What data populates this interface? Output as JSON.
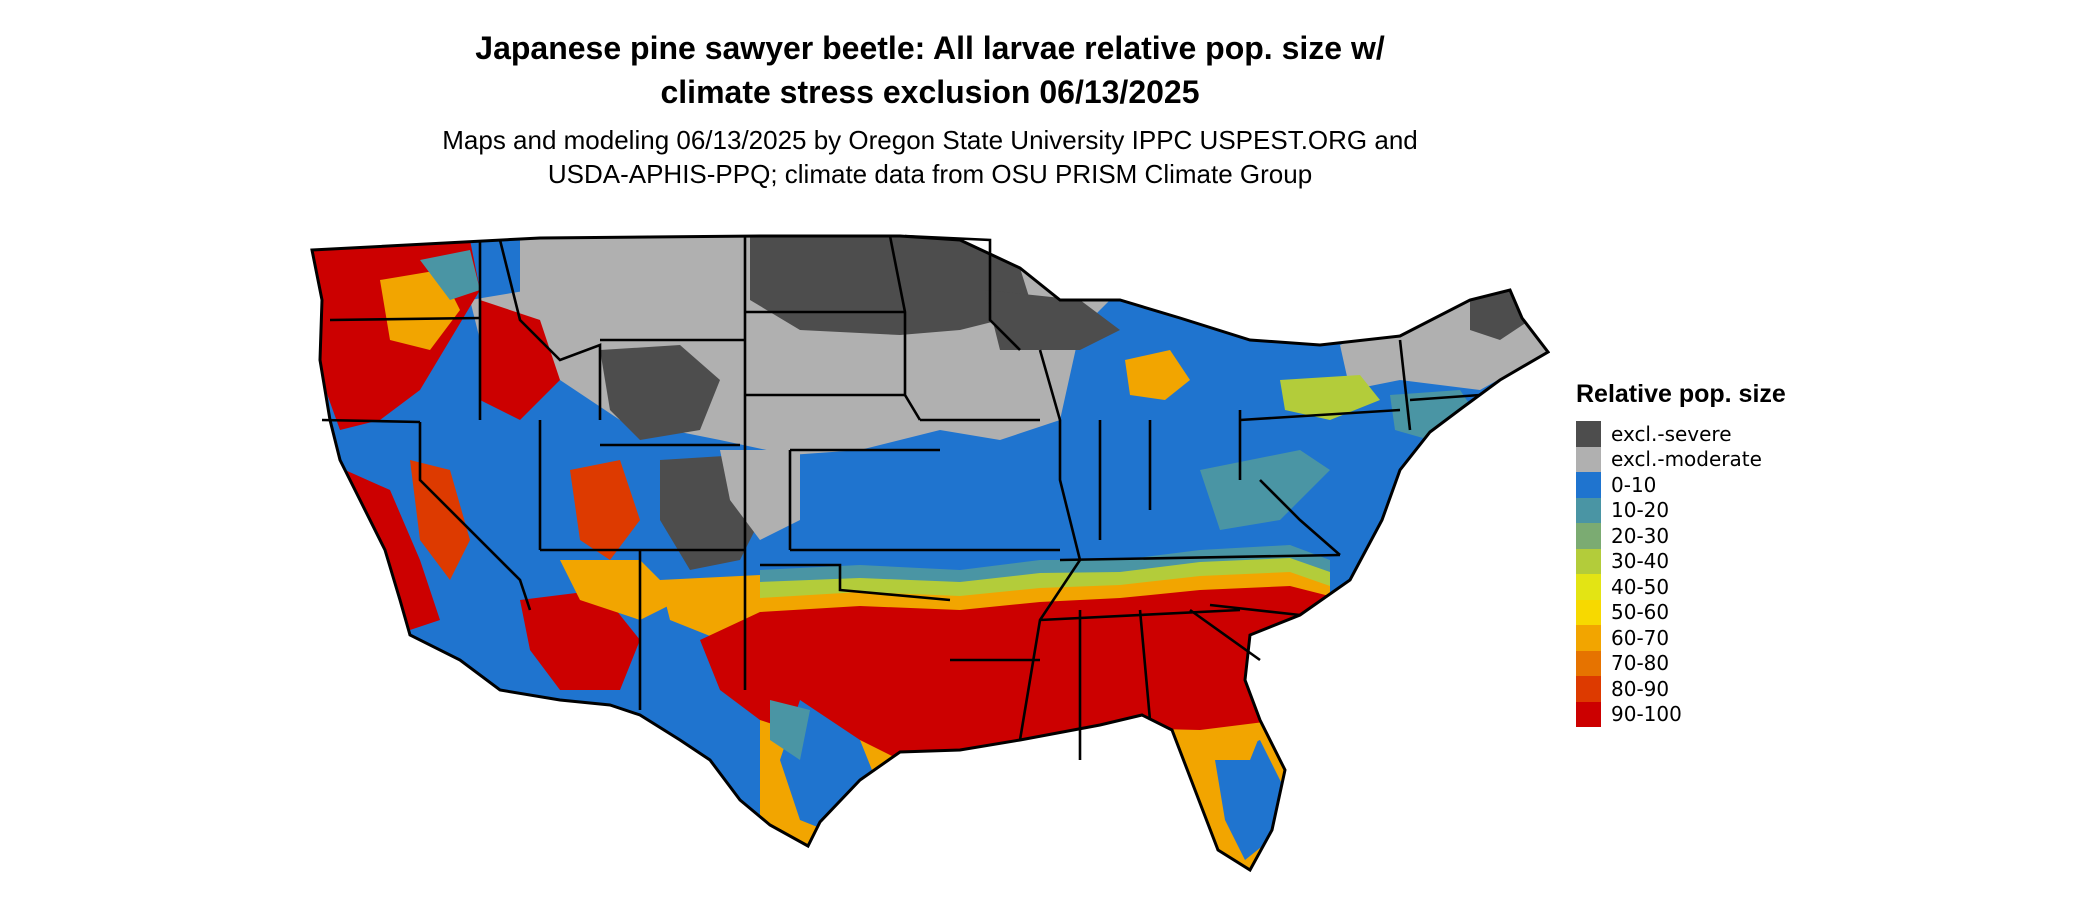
{
  "title_lines": [
    "Japanese pine sawyer beetle: All larvae relative pop. size w/",
    "climate stress exclusion 06/13/2025"
  ],
  "subtitle_lines": [
    "Maps and modeling 06/13/2025 by Oregon State University IPPC USPEST.ORG and",
    "USDA-APHIS-PPQ; climate data from OSU PRISM Climate Group"
  ],
  "legend": {
    "title": "Relative pop. size",
    "items": [
      {
        "label": "excl.-severe",
        "color": "#4d4d4d"
      },
      {
        "label": "excl.-moderate",
        "color": "#b0b0b0"
      },
      {
        "label": "0-10",
        "color": "#1f74cf"
      },
      {
        "label": "10-20",
        "color": "#4a95a4"
      },
      {
        "label": "20-30",
        "color": "#7bab72"
      },
      {
        "label": "30-40",
        "color": "#b3cc3a"
      },
      {
        "label": "40-50",
        "color": "#e3e414"
      },
      {
        "label": "50-60",
        "color": "#f7d900"
      },
      {
        "label": "60-70",
        "color": "#f2a500"
      },
      {
        "label": "70-80",
        "color": "#e67300"
      },
      {
        "label": "80-90",
        "color": "#dd3a00"
      },
      {
        "label": "90-100",
        "color": "#cc0000"
      }
    ]
  }
}
